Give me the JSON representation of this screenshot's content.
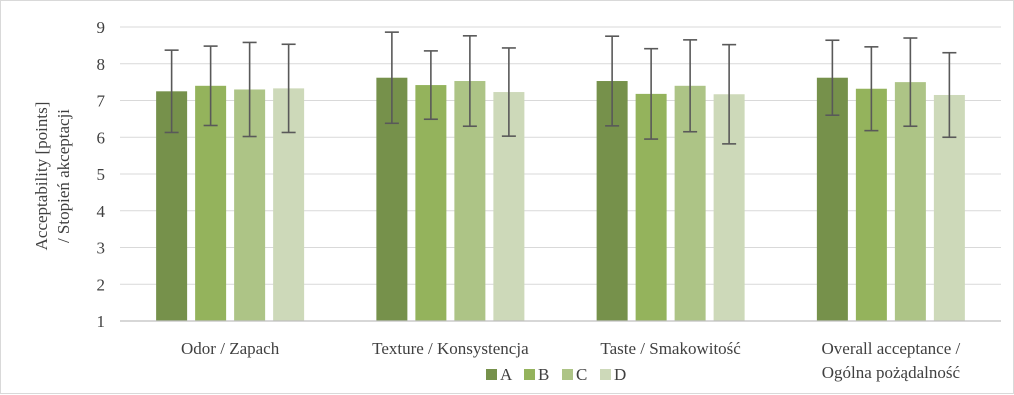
{
  "chart_data": {
    "type": "bar",
    "categories": [
      [
        "Odor / Zapach"
      ],
      [
        "Texture / Konsystencja"
      ],
      [
        "Taste / Smakowitość"
      ],
      [
        "Overall acceptance /",
        "Ogólna pożądalność"
      ]
    ],
    "series": [
      {
        "name": "A",
        "color": "#76914b",
        "values": [
          7.25,
          7.62,
          7.53,
          7.62
        ],
        "errors": [
          1.12,
          1.24,
          1.22,
          1.02
        ]
      },
      {
        "name": "B",
        "color": "#94b35c",
        "values": [
          7.4,
          7.42,
          7.18,
          7.32
        ],
        "errors": [
          1.08,
          0.93,
          1.23,
          1.14
        ]
      },
      {
        "name": "C",
        "color": "#adc486",
        "values": [
          7.3,
          7.53,
          7.4,
          7.5
        ],
        "errors": [
          1.28,
          1.23,
          1.25,
          1.2
        ]
      },
      {
        "name": "D",
        "color": "#cdd9b9",
        "values": [
          7.33,
          7.23,
          7.17,
          7.15
        ],
        "errors": [
          1.2,
          1.2,
          1.35,
          1.15
        ]
      }
    ],
    "ylabel": [
      "Acceptability [points]",
      "/ Stopień akceptacji"
    ],
    "ylim": [
      1,
      9
    ],
    "yticks": [
      "1",
      "2",
      "3",
      "4",
      "5",
      "6",
      "7",
      "8",
      "9"
    ],
    "grid": true,
    "error_bars": true,
    "legend_position": "bottom"
  }
}
